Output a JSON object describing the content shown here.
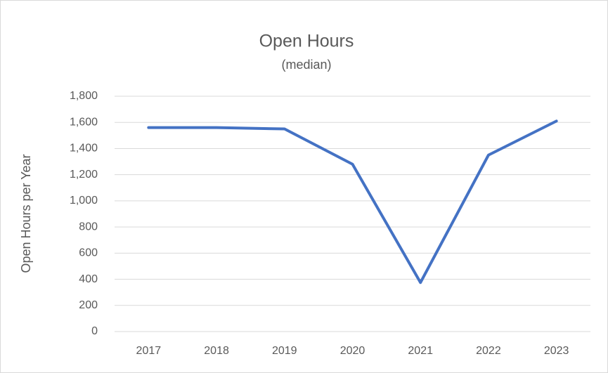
{
  "chart_data": {
    "type": "line",
    "title": "Open Hours",
    "subtitle": "(median)",
    "ylabel": "Open Hours per Year",
    "categories": [
      "2017",
      "2018",
      "2019",
      "2020",
      "2021",
      "2022",
      "2023"
    ],
    "series": [
      {
        "name": "Open Hours",
        "color": "#4472c4",
        "values": [
          1560,
          1560,
          1550,
          1280,
          375,
          1350,
          1610
        ]
      }
    ],
    "ylim": [
      0,
      1800
    ],
    "yticks": [
      0,
      200,
      400,
      600,
      800,
      {
        "value": 1000,
        "label": "1,000"
      },
      {
        "value": 1200,
        "label": "1,200"
      },
      {
        "value": 1400,
        "label": "1,400"
      },
      {
        "value": 1600,
        "label": "1,600"
      },
      {
        "value": 1800,
        "label": "1,800"
      }
    ],
    "grid": true
  }
}
